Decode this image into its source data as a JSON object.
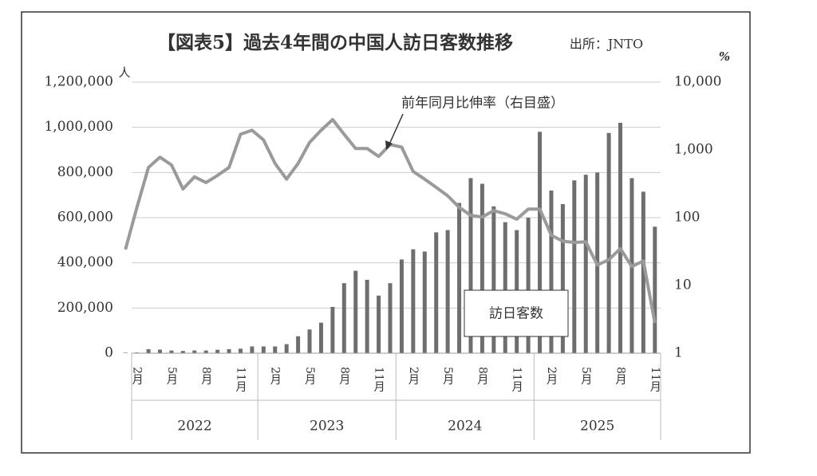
{
  "chart_data": {
    "type": "bar_line",
    "title": "【図表5】過去4年間の中国人訪日客数推移",
    "source": "出所：JNTO",
    "y_unit": "人",
    "y2_unit": "%",
    "line_label": "前年同月比伸率（右目盛）",
    "bar_label": "訪日客数",
    "categories": [
      null,
      "2月",
      null,
      null,
      "5月",
      null,
      null,
      "8月",
      null,
      null,
      "11月",
      null,
      null,
      "2月",
      null,
      null,
      "5月",
      null,
      null,
      "8月",
      null,
      null,
      "11月",
      null,
      null,
      "2月",
      null,
      null,
      "5月",
      null,
      null,
      "8月",
      null,
      null,
      "11月",
      null,
      null,
      "2月",
      null,
      null,
      "5月",
      null,
      null,
      "8月",
      null,
      null,
      "11月"
    ],
    "groups": [
      "2022",
      "2023",
      "2024",
      "2025"
    ],
    "series": [
      {
        "name": "訪日客数",
        "color": "#6e6e6e",
        "values": [
          2000,
          3000,
          18000,
          16000,
          12000,
          10000,
          12000,
          12000,
          15000,
          18000,
          20000,
          30000,
          30000,
          30000,
          40000,
          75000,
          105000,
          135000,
          205000,
          310000,
          365000,
          325000,
          255000,
          310000,
          415000,
          460000,
          450000,
          535000,
          545000,
          665000,
          775000,
          750000,
          650000,
          580000,
          545000,
          600000,
          980000,
          720000,
          660000,
          765000,
          790000,
          800000,
          975000,
          1020000,
          775000,
          715000,
          560000
        ]
      },
      {
        "name": "前年同月比伸率",
        "color": "#9a9a9a",
        "axis": "y2",
        "values": [
          34,
          142,
          550,
          780,
          600,
          265,
          400,
          330,
          420,
          550,
          1700,
          1950,
          1400,
          630,
          370,
          630,
          1290,
          1950,
          2800,
          1700,
          1050,
          1050,
          800,
          1200,
          1100,
          480,
          370,
          280,
          210,
          142,
          108,
          102,
          127,
          114,
          95,
          134,
          134,
          55,
          45,
          43,
          44,
          20,
          24,
          35,
          19,
          23,
          2.8
        ]
      }
    ],
    "ylim": [
      0,
      1200000
    ],
    "yticks": [
      0,
      {
        "value": 200000,
        "label": "200,000"
      },
      {
        "value": 400000,
        "label": "400,000"
      },
      {
        "value": 600000,
        "label": "600,000"
      },
      {
        "value": 800000,
        "label": "800,000"
      },
      {
        "value": 1000000,
        "label": "1,000,000"
      },
      {
        "value": 1200000,
        "label": "1,200,000"
      }
    ],
    "y2lim": [
      1,
      10000
    ],
    "y2log": true,
    "y2ticks": [
      1,
      10,
      100,
      {
        "value": 1000,
        "label": "1,000"
      },
      {
        "value": 10000,
        "label": "10,000"
      }
    ],
    "grid": true
  }
}
